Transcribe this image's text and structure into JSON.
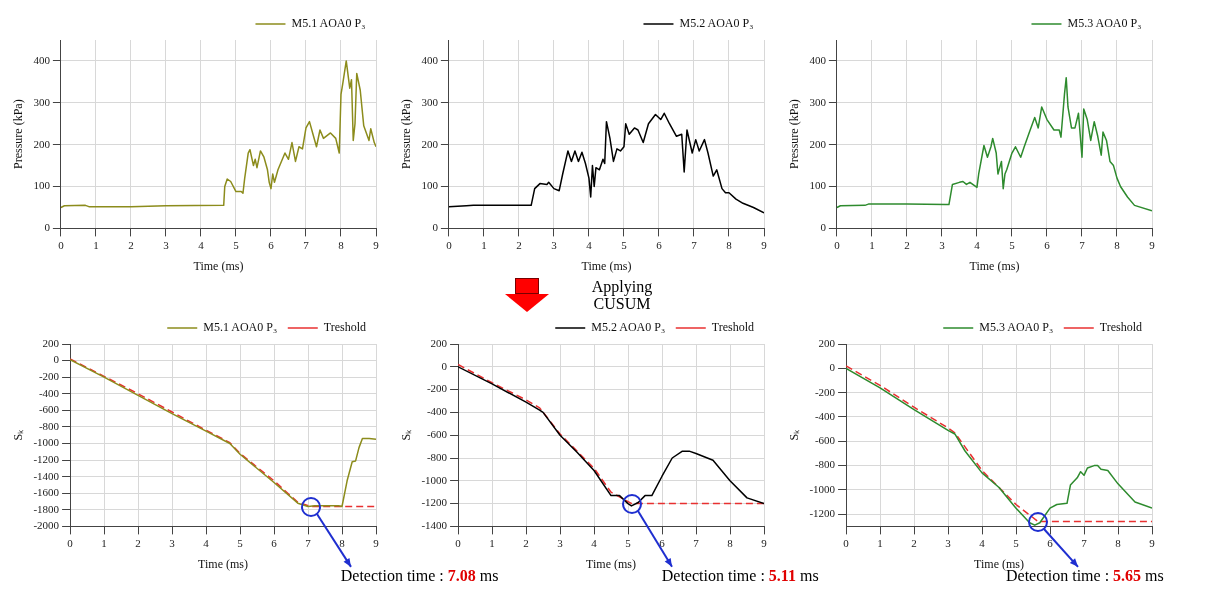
{
  "chart_data": [
    {
      "type": "line",
      "xlabel": "Time (ms)",
      "ylabel": "Pressure (kPa)",
      "xlim": [
        0,
        9
      ],
      "xticks": [
        0,
        1,
        2,
        3,
        4,
        5,
        6,
        7,
        8,
        9
      ],
      "ylim": [
        0,
        450
      ],
      "yticks": [
        0,
        100,
        200,
        300,
        400
      ],
      "grid": true,
      "legend": "top right",
      "marker": "none",
      "series": [
        {
          "name": "M5.1 AOA0 P₃",
          "color": "#8c8c1c",
          "x": [
            0,
            0.1,
            0.7,
            0.8,
            2,
            3,
            4.65,
            4.68,
            4.75,
            4.85,
            5.0,
            5.15,
            5.2,
            5.25,
            5.35,
            5.4,
            5.5,
            5.55,
            5.6,
            5.7,
            5.8,
            5.9,
            5.95,
            6.0,
            6.05,
            6.1,
            6.2,
            6.4,
            6.5,
            6.6,
            6.7,
            6.8,
            6.9,
            7.0,
            7.1,
            7.2,
            7.3,
            7.4,
            7.5,
            7.7,
            7.85,
            7.95,
            8.0,
            8.05,
            8.15,
            8.25,
            8.3,
            8.35,
            8.4,
            8.45,
            8.55,
            8.65,
            8.8,
            8.85,
            8.95,
            9.0
          ],
          "values": [
            50,
            54,
            55,
            52,
            52,
            54,
            55,
            100,
            118,
            112,
            88,
            88,
            84,
            120,
            180,
            188,
            150,
            165,
            145,
            185,
            170,
            140,
            110,
            95,
            130,
            110,
            140,
            180,
            165,
            205,
            160,
            195,
            190,
            240,
            255,
            225,
            195,
            235,
            215,
            228,
            215,
            180,
            320,
            345,
            400,
            335,
            355,
            210,
            250,
            370,
            330,
            245,
            210,
            238,
            205,
            195
          ]
        }
      ]
    },
    {
      "type": "line",
      "xlabel": "Time (ms)",
      "ylabel": "Pressure (kPa)",
      "xlim": [
        0,
        9
      ],
      "xticks": [
        0,
        1,
        2,
        3,
        4,
        5,
        6,
        7,
        8,
        9
      ],
      "ylim": [
        0,
        450
      ],
      "yticks": [
        0,
        100,
        200,
        300,
        400
      ],
      "grid": true,
      "legend": "top right",
      "marker": "none",
      "series": [
        {
          "name": "M5.2 AOA0 P₃",
          "color": "#000000",
          "x": [
            0,
            0.5,
            0.7,
            2.35,
            2.45,
            2.6,
            2.8,
            2.85,
            3.0,
            3.15,
            3.25,
            3.4,
            3.5,
            3.6,
            3.7,
            3.8,
            3.9,
            4.0,
            4.05,
            4.1,
            4.15,
            4.2,
            4.3,
            4.4,
            4.45,
            4.5,
            4.6,
            4.7,
            4.8,
            4.9,
            5.0,
            5.05,
            5.15,
            5.3,
            5.4,
            5.55,
            5.7,
            5.9,
            6.05,
            6.15,
            6.3,
            6.5,
            6.65,
            6.72,
            6.8,
            6.95,
            7.05,
            7.15,
            7.3,
            7.4,
            7.55,
            7.65,
            7.8,
            7.9,
            8.0,
            8.2,
            8.4,
            8.7,
            9.0
          ],
          "values": [
            52,
            54,
            55,
            55,
            95,
            107,
            105,
            110,
            95,
            90,
            130,
            185,
            160,
            185,
            160,
            182,
            155,
            120,
            75,
            150,
            100,
            145,
            140,
            165,
            155,
            255,
            215,
            160,
            190,
            185,
            195,
            250,
            225,
            240,
            235,
            205,
            250,
            272,
            260,
            275,
            250,
            220,
            225,
            135,
            235,
            180,
            212,
            185,
            212,
            180,
            125,
            140,
            95,
            85,
            85,
            70,
            60,
            50,
            37
          ]
        }
      ]
    },
    {
      "type": "line",
      "xlabel": "Time (ms)",
      "ylabel": "Pressure (kPa)",
      "xlim": [
        0,
        9
      ],
      "xticks": [
        0,
        1,
        2,
        3,
        4,
        5,
        6,
        7,
        8,
        9
      ],
      "ylim": [
        0,
        450
      ],
      "yticks": [
        0,
        100,
        200,
        300,
        400
      ],
      "grid": true,
      "legend": "top right",
      "marker": "none",
      "series": [
        {
          "name": "M5.3 AOA0 P₃",
          "color": "#2e8b2e",
          "x": [
            0,
            0.1,
            0.8,
            0.9,
            2,
            3.1,
            3.2,
            3.3,
            3.5,
            3.6,
            3.7,
            3.8,
            4.0,
            4.05,
            4.2,
            4.3,
            4.4,
            4.45,
            4.55,
            4.6,
            4.7,
            4.75,
            4.8,
            4.85,
            5.0,
            5.1,
            5.25,
            5.35,
            5.5,
            5.65,
            5.75,
            5.85,
            6.0,
            6.2,
            6.35,
            6.4,
            6.5,
            6.55,
            6.6,
            6.7,
            6.8,
            6.9,
            7.0,
            7.05,
            7.15,
            7.25,
            7.35,
            7.45,
            7.55,
            7.6,
            7.7,
            7.8,
            7.9,
            8.0,
            8.1,
            8.3,
            8.5,
            9.0
          ],
          "values": [
            50,
            54,
            55,
            58,
            58,
            57,
            57,
            105,
            110,
            112,
            105,
            110,
            98,
            130,
            198,
            170,
            195,
            215,
            180,
            130,
            160,
            95,
            130,
            140,
            180,
            195,
            170,
            195,
            230,
            265,
            240,
            290,
            260,
            235,
            235,
            218,
            320,
            360,
            290,
            240,
            240,
            275,
            170,
            285,
            260,
            210,
            255,
            220,
            175,
            230,
            210,
            160,
            150,
            120,
            100,
            75,
            55,
            42
          ]
        }
      ]
    },
    {
      "type": "line",
      "xlabel": "Time (ms)",
      "ylabel": "Sₖ",
      "xlim": [
        0,
        9
      ],
      "xticks": [
        0,
        1,
        2,
        3,
        4,
        5,
        6,
        7,
        8,
        9
      ],
      "ylim": [
        -2000,
        200
      ],
      "yticks": [
        -2000,
        -1800,
        -1600,
        -1400,
        -1200,
        -1000,
        -800,
        -600,
        -400,
        -200,
        0,
        200
      ],
      "grid": true,
      "legend": "top right",
      "marker": "none",
      "annotations": [
        {
          "text": "Detection time : 7.08 ms",
          "x": 7.08,
          "y": -1760
        }
      ],
      "series": [
        {
          "name": "M5.1 AOA0 P₃",
          "color": "#8c8c1c",
          "line_style": "solid",
          "x": [
            0,
            1,
            2,
            3,
            4,
            4.7,
            5,
            6,
            6.7,
            7,
            7.2,
            7.9,
            8.0,
            8.15,
            8.3,
            8.4,
            8.5,
            8.6,
            8.8,
            9.0
          ],
          "values": [
            10,
            -200,
            -420,
            -640,
            -850,
            -1000,
            -1130,
            -1470,
            -1720,
            -1760,
            -1750,
            -1750,
            -1760,
            -1450,
            -1220,
            -1210,
            -1050,
            -940,
            -940,
            -950
          ]
        },
        {
          "name": "Treshold",
          "color": "#e83030",
          "line_style": "dashed",
          "x": [
            0,
            1,
            2,
            3,
            4,
            4.7,
            5,
            6,
            6.7,
            7.08,
            9
          ],
          "values": [
            20,
            -190,
            -400,
            -620,
            -840,
            -990,
            -1120,
            -1450,
            -1710,
            -1760,
            -1760
          ]
        }
      ]
    },
    {
      "type": "line",
      "xlabel": "Time (ms)",
      "ylabel": "Sₖ",
      "xlim": [
        0,
        9
      ],
      "xticks": [
        0,
        1,
        2,
        3,
        4,
        5,
        6,
        7,
        8,
        9
      ],
      "ylim": [
        -1400,
        200
      ],
      "yticks": [
        -1400,
        -1200,
        -1000,
        -800,
        -600,
        -400,
        -200,
        0,
        200
      ],
      "grid": true,
      "legend": "top right",
      "marker": "none",
      "annotations": [
        "Applying CUSUM",
        {
          "text": "Detection time : 5.11 ms",
          "x": 5.11,
          "y": -1200
        }
      ],
      "series": [
        {
          "name": "M5.2 AOA0 P₃",
          "color": "#000000",
          "line_style": "solid",
          "x": [
            0,
            1,
            2,
            2.4,
            2.5,
            3,
            3.5,
            4,
            4.5,
            4.75,
            5.0,
            5.1,
            5.3,
            5.5,
            5.7,
            6.0,
            6.3,
            6.6,
            6.8,
            7.0,
            7.5,
            8.0,
            8.5,
            9.0
          ],
          "values": [
            0,
            -150,
            -310,
            -380,
            -400,
            -600,
            -750,
            -910,
            -1130,
            -1130,
            -1200,
            -1220,
            -1190,
            -1130,
            -1130,
            -960,
            -800,
            -740,
            -740,
            -760,
            -820,
            -1000,
            -1150,
            -1200
          ]
        },
        {
          "name": "Treshold",
          "color": "#e83030",
          "line_style": "dashed",
          "x": [
            0,
            1,
            2,
            2.4,
            3,
            4,
            4.5,
            5.11,
            9
          ],
          "values": [
            20,
            -140,
            -290,
            -360,
            -590,
            -890,
            -1100,
            -1200,
            -1200
          ]
        }
      ]
    },
    {
      "type": "line",
      "xlabel": "Time (ms)",
      "ylabel": "Sₖ",
      "xlim": [
        0,
        9
      ],
      "xticks": [
        0,
        1,
        2,
        3,
        4,
        5,
        6,
        7,
        8,
        9
      ],
      "ylim": [
        -1300,
        200
      ],
      "yticks": [
        -1200,
        -1000,
        -800,
        -600,
        -400,
        -200,
        0,
        200
      ],
      "grid": true,
      "legend": "top right",
      "marker": "none",
      "annotations": [
        {
          "text": "Detection time : 5.65 ms",
          "x": 5.65,
          "y": -1260
        }
      ],
      "series": [
        {
          "name": "M5.3 AOA0 P₃",
          "color": "#2e8b2e",
          "line_style": "solid",
          "x": [
            0,
            1,
            2,
            3,
            3.2,
            3.5,
            4,
            4.5,
            5,
            5.4,
            5.55,
            5.7,
            6.0,
            6.2,
            6.5,
            6.6,
            6.8,
            6.9,
            7.0,
            7.1,
            7.3,
            7.4,
            7.5,
            7.7,
            8.0,
            8.5,
            9.0
          ],
          "values": [
            0,
            -160,
            -340,
            -510,
            -540,
            -680,
            -860,
            -980,
            -1150,
            -1270,
            -1290,
            -1270,
            -1150,
            -1120,
            -1110,
            -960,
            -900,
            -850,
            -880,
            -820,
            -800,
            -800,
            -830,
            -840,
            -950,
            -1100,
            -1150
          ]
        },
        {
          "name": "Treshold",
          "color": "#e83030",
          "line_style": "dashed",
          "x": [
            0,
            1,
            2,
            3,
            3.2,
            4,
            5,
            5.65,
            9
          ],
          "values": [
            20,
            -140,
            -320,
            -490,
            -530,
            -840,
            -1120,
            -1260,
            -1260
          ]
        }
      ]
    }
  ]
}
